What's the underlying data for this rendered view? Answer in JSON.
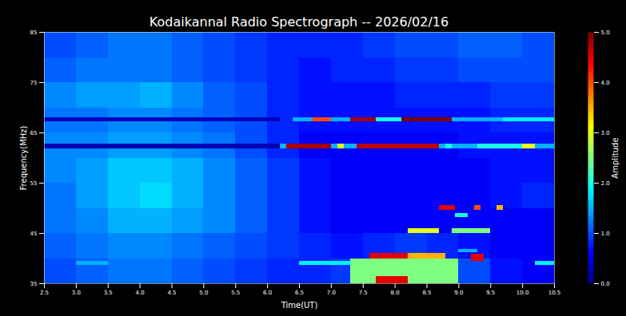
{
  "chart_data": {
    "type": "heatmap",
    "title": "Kodaikannal Radio Spectrograph -- 2026/02/16",
    "xlabel": "Time(UT)",
    "ylabel": "Frequency(MHz)",
    "xlim": [
      2.5,
      10.5
    ],
    "ylim": [
      35,
      85
    ],
    "xticks": [
      2.5,
      {
        "value": 3,
        "label": "3.0"
      },
      3.5,
      {
        "value": 4,
        "label": "4.0"
      },
      4.5,
      {
        "value": 5,
        "label": "5.0"
      },
      5.5,
      {
        "value": 6,
        "label": "6.0"
      },
      6.5,
      {
        "value": 7,
        "label": "7.0"
      },
      7.5,
      {
        "value": 8,
        "label": "8.0"
      },
      8.5,
      {
        "value": 9,
        "label": "9.0"
      },
      9.5,
      {
        "value": 10,
        "label": "10.0"
      },
      10.5
    ],
    "yticks": [
      35,
      45,
      55,
      65,
      75,
      85
    ],
    "x_edges": [
      2.5,
      3.0,
      3.5,
      4.0,
      4.5,
      5.0,
      5.5,
      6.0,
      6.5,
      7.0,
      7.5,
      8.0,
      8.5,
      9.0,
      9.5,
      10.0,
      10.5
    ],
    "y_edges": [
      35,
      40,
      45,
      50,
      55,
      60,
      65,
      70,
      75,
      80,
      85
    ],
    "amplitude": [
      [
        1.0,
        1.1,
        1.2,
        1.2,
        1.1,
        1.0,
        0.9,
        0.8,
        0.8,
        0.9,
        1.2,
        1.6,
        1.4,
        1.0,
        0.7,
        0.6
      ],
      [
        1.1,
        1.2,
        1.3,
        1.3,
        1.2,
        1.1,
        1.0,
        0.9,
        0.8,
        0.7,
        0.8,
        0.9,
        0.8,
        0.7,
        0.6,
        0.6
      ],
      [
        1.2,
        1.3,
        1.5,
        1.5,
        1.4,
        1.3,
        1.1,
        0.9,
        0.7,
        0.6,
        0.6,
        0.6,
        0.6,
        0.6,
        0.6,
        0.6
      ],
      [
        1.2,
        1.4,
        1.6,
        1.7,
        1.5,
        1.3,
        1.1,
        0.9,
        0.7,
        0.6,
        0.6,
        0.6,
        0.6,
        0.6,
        0.7,
        0.8
      ],
      [
        1.3,
        1.4,
        1.6,
        1.6,
        1.5,
        1.3,
        1.1,
        0.9,
        0.7,
        0.6,
        0.6,
        0.6,
        0.6,
        0.6,
        0.7,
        0.7
      ],
      [
        1.3,
        1.3,
        1.4,
        1.4,
        1.3,
        1.2,
        1.0,
        0.8,
        0.6,
        0.6,
        0.6,
        0.6,
        0.6,
        0.7,
        0.7,
        0.7
      ],
      [
        1.2,
        1.2,
        1.3,
        1.3,
        1.2,
        1.1,
        1.0,
        0.8,
        0.7,
        0.7,
        0.7,
        0.7,
        0.7,
        0.7,
        0.8,
        0.8
      ],
      [
        1.3,
        1.4,
        1.4,
        1.5,
        1.3,
        1.1,
        1.0,
        0.8,
        0.7,
        0.7,
        0.7,
        0.8,
        0.8,
        0.8,
        0.9,
        0.9
      ],
      [
        1.1,
        1.2,
        1.2,
        1.2,
        1.1,
        1.0,
        0.9,
        0.8,
        0.7,
        0.8,
        0.8,
        0.9,
        0.9,
        1.0,
        1.0,
        1.0
      ],
      [
        1.0,
        1.1,
        1.2,
        1.2,
        1.1,
        1.0,
        0.9,
        0.8,
        0.8,
        0.8,
        0.9,
        1.0,
        1.0,
        1.1,
        1.1,
        1.0
      ]
    ],
    "bursts": [
      {
        "t0": 2.5,
        "t1": 6.2,
        "f0": 67.2,
        "f1": 68.0,
        "amplitude": 0.3
      },
      {
        "t0": 2.5,
        "t1": 6.2,
        "f0": 61.8,
        "f1": 62.8,
        "amplitude": 0.25
      },
      {
        "t0": 6.4,
        "t1": 10.5,
        "f0": 67.2,
        "f1": 68.0,
        "amplitude": 1.5
      },
      {
        "t0": 6.7,
        "t1": 7.0,
        "f0": 67.2,
        "f1": 68.0,
        "amplitude": 4.0
      },
      {
        "t0": 7.3,
        "t1": 7.7,
        "f0": 67.2,
        "f1": 68.0,
        "amplitude": 4.8
      },
      {
        "t0": 7.7,
        "t1": 8.1,
        "f0": 67.2,
        "f1": 68.0,
        "amplitude": 2.0
      },
      {
        "t0": 8.1,
        "t1": 8.9,
        "f0": 67.2,
        "f1": 68.0,
        "amplitude": 5.0
      },
      {
        "t0": 9.2,
        "t1": 9.4,
        "f0": 67.2,
        "f1": 68.0,
        "amplitude": 1.5
      },
      {
        "t0": 9.7,
        "t1": 10.5,
        "f0": 67.2,
        "f1": 68.0,
        "amplitude": 1.8
      },
      {
        "t0": 6.2,
        "t1": 10.5,
        "f0": 61.8,
        "f1": 62.8,
        "amplitude": 1.5
      },
      {
        "t0": 6.3,
        "t1": 7.0,
        "f0": 61.8,
        "f1": 62.8,
        "amplitude": 4.8
      },
      {
        "t0": 7.1,
        "t1": 7.2,
        "f0": 61.8,
        "f1": 62.8,
        "amplitude": 3.0
      },
      {
        "t0": 7.4,
        "t1": 8.7,
        "f0": 61.8,
        "f1": 62.8,
        "amplitude": 4.7
      },
      {
        "t0": 8.8,
        "t1": 8.9,
        "f0": 61.8,
        "f1": 62.8,
        "amplitude": 2.0
      },
      {
        "t0": 9.3,
        "t1": 10.0,
        "f0": 61.8,
        "f1": 62.8,
        "amplitude": 2.0
      },
      {
        "t0": 10.0,
        "t1": 10.2,
        "f0": 61.8,
        "f1": 62.8,
        "amplitude": 3.0
      },
      {
        "t0": 8.7,
        "t1": 8.95,
        "f0": 49.6,
        "f1": 50.6,
        "amplitude": 4.5
      },
      {
        "t0": 9.25,
        "t1": 9.35,
        "f0": 49.6,
        "f1": 50.6,
        "amplitude": 4.0
      },
      {
        "t0": 9.6,
        "t1": 9.7,
        "f0": 49.6,
        "f1": 50.6,
        "amplitude": 3.5
      },
      {
        "t0": 8.95,
        "t1": 9.15,
        "f0": 48.2,
        "f1": 48.9,
        "amplitude": 2.0
      },
      {
        "t0": 8.2,
        "t1": 8.7,
        "f0": 45.0,
        "f1": 46.0,
        "amplitude": 3.0
      },
      {
        "t0": 8.9,
        "t1": 9.5,
        "f0": 45.0,
        "f1": 46.0,
        "amplitude": 2.5
      },
      {
        "t0": 9.0,
        "t1": 9.3,
        "f0": 41.2,
        "f1": 41.8,
        "amplitude": 1.5
      },
      {
        "t0": 6.5,
        "t1": 7.3,
        "f0": 38.7,
        "f1": 39.4,
        "amplitude": 1.8
      },
      {
        "t0": 10.2,
        "t1": 10.5,
        "f0": 38.7,
        "f1": 39.4,
        "amplitude": 1.8
      },
      {
        "t0": 3.0,
        "t1": 3.5,
        "f0": 38.7,
        "f1": 39.4,
        "amplitude": 1.5
      },
      {
        "t0": 7.3,
        "t1": 9.0,
        "f0": 35,
        "f1": 40,
        "amplitude": 2.5
      },
      {
        "t0": 7.6,
        "t1": 8.2,
        "f0": 40,
        "f1": 41,
        "amplitude": 4.5
      },
      {
        "t0": 8.2,
        "t1": 8.8,
        "f0": 40,
        "f1": 41,
        "amplitude": 3.5
      },
      {
        "t0": 7.7,
        "t1": 8.2,
        "f0": 35,
        "f1": 36.5,
        "amplitude": 4.5
      },
      {
        "t0": 9.2,
        "t1": 9.4,
        "f0": 39.5,
        "f1": 40.8,
        "amplitude": 4.5
      }
    ],
    "colorbar": {
      "label": "Amplitude",
      "lim": [
        0,
        5
      ],
      "ticks": [
        0,
        1,
        2,
        3,
        4,
        5
      ]
    }
  }
}
